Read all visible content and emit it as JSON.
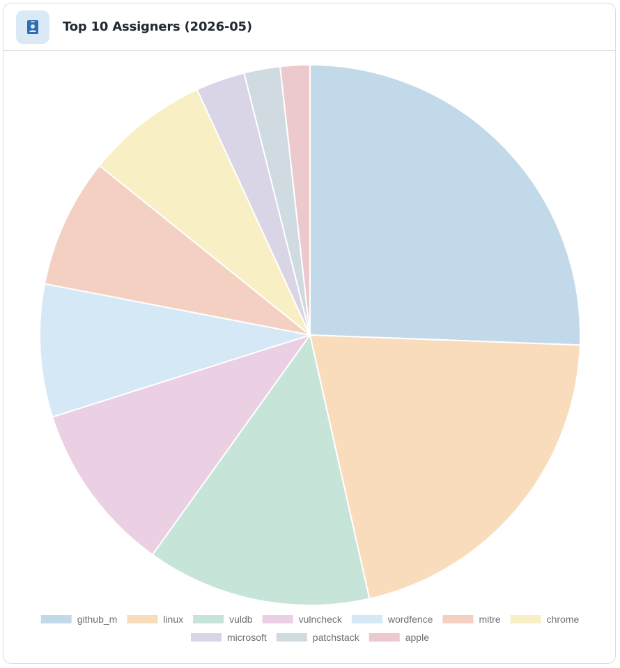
{
  "header": {
    "title": "Top 10 Assigners (2026-05)",
    "icon": "id-badge-icon",
    "icon_color": "#2e6db3"
  },
  "chart_data": {
    "type": "pie",
    "title": "Top 10 Assigners (2026-05)",
    "categories": [
      "github_m",
      "linux",
      "vuldb",
      "vulncheck",
      "wordfence",
      "mitre",
      "chrome",
      "microsoft",
      "patchstack",
      "apple"
    ],
    "values": [
      26.1,
      21.3,
      13.7,
      10.4,
      8.1,
      7.9,
      7.5,
      3.0,
      2.2,
      1.8
    ],
    "colors": [
      "#c2d9ea",
      "#f8dcbb",
      "#c7e4d8",
      "#ebcfe3",
      "#d5e8f5",
      "#f3d0c2",
      "#f8f0c4",
      "#dad5e6",
      "#cfdbe1",
      "#ebc9cd"
    ],
    "legend_position": "bottom",
    "start_angle_deg": 0,
    "direction": "clockwise"
  }
}
